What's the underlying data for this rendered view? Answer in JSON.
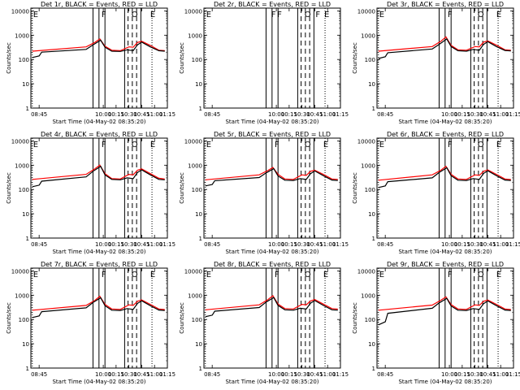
{
  "chart_data": [
    {
      "type": "line",
      "title": "Det 1r, BLACK = Events, RED = LLD",
      "xlabel": "Start Time (04-May-02 08:35:20)",
      "ylabel": "Counts/sec",
      "x_ticks": [
        "08:45",
        "10:00",
        "10:15",
        "10:30",
        "10:45",
        "11:00",
        "11:15"
      ],
      "y_ticks": [
        "1",
        "10",
        "100",
        "1000",
        "10000"
      ],
      "y_scale": "log",
      "ylim": [
        1,
        13000
      ],
      "xlim": [
        "08:35:20",
        "11:15:00"
      ],
      "flag_letters": [
        {
          "t": "08:37",
          "text": "E"
        },
        {
          "t": "09:57",
          "text": "F"
        },
        {
          "t": "10:32",
          "text": "O"
        },
        {
          "t": "10:54",
          "text": "E"
        }
      ],
      "series": [
        {
          "color": "#ff0000",
          "x": [
            "08:37",
            "09:40",
            "09:50",
            "09:56",
            "10:02",
            "10:10",
            "10:20",
            "10:30",
            "10:35",
            "10:40",
            "10:45",
            "10:55",
            "11:05",
            "11:12"
          ],
          "y": [
            220,
            330,
            500,
            700,
            350,
            240,
            230,
            330,
            320,
            500,
            560,
            380,
            240,
            230
          ]
        },
        {
          "color": "#000000",
          "x": [
            "08:37",
            "08:45",
            "08:48",
            "09:40",
            "09:48",
            "09:57",
            "10:02",
            "10:10",
            "10:20",
            "10:28",
            "10:35",
            "10:40",
            "10:45",
            "10:55",
            "11:05",
            "11:12"
          ],
          "y": [
            120,
            140,
            200,
            260,
            400,
            620,
            320,
            220,
            215,
            250,
            230,
            400,
            520,
            330,
            230,
            220
          ]
        }
      ]
    },
    {
      "type": "line",
      "title": "Det 2r, BLACK = Events, RED = LLD",
      "xlabel": "Start Time (04-May-02 08:35:20)",
      "ylabel": "Counts/sec",
      "x_ticks": [
        "08:45",
        "10:00",
        "10:15",
        "10:30",
        "10:45",
        "11:00",
        "11:15"
      ],
      "y_ticks": [
        "1",
        "10",
        "100",
        "1000",
        "10000"
      ],
      "y_scale": "log",
      "ylim": [
        1,
        13000
      ],
      "xlim": [
        "08:35:20",
        "11:15:00"
      ],
      "flag_letters": [
        {
          "t": "08:37",
          "text": "E"
        },
        {
          "t": "09:53",
          "text": "F"
        },
        {
          "t": "10:00",
          "text": "F"
        },
        {
          "t": "10:32",
          "text": "O"
        },
        {
          "t": "10:45",
          "text": "F"
        },
        {
          "t": "10:55",
          "text": "E"
        }
      ],
      "series": []
    },
    {
      "type": "line",
      "title": "Det 3r, BLACK = Events, RED = LLD",
      "xlabel": "Start Time (04-May-02 08:35:20)",
      "ylabel": "Counts/sec",
      "x_ticks": [
        "08:45",
        "10:00",
        "10:15",
        "10:30",
        "10:45",
        "11:00",
        "11:15"
      ],
      "y_ticks": [
        "1",
        "10",
        "100",
        "1000",
        "10000"
      ],
      "y_scale": "log",
      "ylim": [
        1,
        13000
      ],
      "xlim": [
        "08:35:20",
        "11:15:00"
      ],
      "flag_letters": [
        {
          "t": "08:37",
          "text": "E"
        },
        {
          "t": "09:57",
          "text": "F"
        },
        {
          "t": "10:32",
          "text": "O"
        },
        {
          "t": "10:54",
          "text": "E"
        }
      ],
      "series": [
        {
          "color": "#ff0000",
          "x": [
            "08:37",
            "09:40",
            "09:50",
            "09:56",
            "10:02",
            "10:10",
            "10:20",
            "10:30",
            "10:35",
            "10:40",
            "10:45",
            "10:55",
            "11:05",
            "11:12"
          ],
          "y": [
            220,
            340,
            560,
            850,
            380,
            250,
            240,
            340,
            330,
            520,
            580,
            390,
            250,
            240
          ]
        },
        {
          "color": "#000000",
          "x": [
            "08:37",
            "08:45",
            "08:48",
            "09:40",
            "09:48",
            "09:57",
            "10:02",
            "10:10",
            "10:20",
            "10:28",
            "10:35",
            "10:40",
            "10:45",
            "10:55",
            "11:05",
            "11:12"
          ],
          "y": [
            110,
            130,
            190,
            270,
            420,
            700,
            340,
            230,
            220,
            260,
            240,
            420,
            540,
            340,
            235,
            225
          ]
        }
      ]
    },
    {
      "type": "line",
      "title": "Det 4r, BLACK = Events, RED = LLD",
      "xlabel": "Start Time (04-May-02 08:35:20)",
      "ylabel": "Counts/sec",
      "x_ticks": [
        "08:45",
        "10:00",
        "10:15",
        "10:30",
        "10:45",
        "11:00",
        "11:15"
      ],
      "y_ticks": [
        "1",
        "10",
        "100",
        "1000",
        "10000"
      ],
      "y_scale": "log",
      "ylim": [
        1,
        13000
      ],
      "xlim": [
        "08:35:20",
        "11:15:00"
      ],
      "flag_letters": [
        {
          "t": "08:37",
          "text": "E"
        },
        {
          "t": "09:57",
          "text": "F"
        },
        {
          "t": "10:32",
          "text": "O"
        },
        {
          "t": "10:54",
          "text": "E"
        }
      ],
      "series": [
        {
          "color": "#ff0000",
          "x": [
            "08:37",
            "09:40",
            "09:50",
            "09:56",
            "10:02",
            "10:10",
            "10:20",
            "10:30",
            "10:35",
            "10:40",
            "10:45",
            "10:55",
            "11:05",
            "11:12"
          ],
          "y": [
            260,
            420,
            700,
            1000,
            450,
            280,
            270,
            420,
            400,
            620,
            700,
            450,
            290,
            270
          ]
        },
        {
          "color": "#000000",
          "x": [
            "08:37",
            "08:45",
            "08:48",
            "09:40",
            "09:48",
            "09:57",
            "10:02",
            "10:10",
            "10:20",
            "10:28",
            "10:35",
            "10:40",
            "10:45",
            "10:55",
            "11:05",
            "11:12"
          ],
          "y": [
            130,
            150,
            220,
            330,
            560,
            900,
            400,
            260,
            250,
            300,
            280,
            500,
            640,
            400,
            260,
            250
          ]
        }
      ]
    },
    {
      "type": "line",
      "title": "Det 5r, BLACK = Events, RED = LLD",
      "xlabel": "Start Time (04-May-02 08:35:20)",
      "ylabel": "Counts/sec",
      "x_ticks": [
        "08:45",
        "10:00",
        "10:15",
        "10:30",
        "10:45",
        "11:00",
        "11:15"
      ],
      "y_ticks": [
        "1",
        "10",
        "100",
        "1000",
        "10000"
      ],
      "y_scale": "log",
      "ylim": [
        1,
        13000
      ],
      "xlim": [
        "08:35:20",
        "11:15:00"
      ],
      "flag_letters": [
        {
          "t": "08:37",
          "text": "E"
        },
        {
          "t": "09:57",
          "text": "F"
        },
        {
          "t": "10:32",
          "text": "O"
        },
        {
          "t": "10:54",
          "text": "E"
        }
      ],
      "series": [
        {
          "color": "#ff0000",
          "x": [
            "08:37",
            "09:40",
            "09:50",
            "09:56",
            "10:02",
            "10:10",
            "10:20",
            "10:30",
            "10:35",
            "10:40",
            "10:45",
            "10:55",
            "11:05",
            "11:12"
          ],
          "y": [
            250,
            400,
            600,
            800,
            420,
            270,
            260,
            400,
            380,
            560,
            620,
            420,
            270,
            260
          ]
        },
        {
          "color": "#000000",
          "x": [
            "08:37",
            "08:45",
            "08:48",
            "09:40",
            "09:48",
            "09:57",
            "10:02",
            "10:10",
            "10:20",
            "10:28",
            "10:35",
            "10:40",
            "10:45",
            "10:55",
            "11:05",
            "11:12"
          ],
          "y": [
            140,
            160,
            230,
            310,
            480,
            720,
            360,
            240,
            235,
            280,
            260,
            450,
            580,
            370,
            245,
            235
          ]
        }
      ]
    },
    {
      "type": "line",
      "title": "Det 6r, BLACK = Events, RED = LLD",
      "xlabel": "Start Time (04-May-02 08:35:20)",
      "ylabel": "Counts/sec",
      "x_ticks": [
        "08:45",
        "10:00",
        "10:15",
        "10:30",
        "10:45",
        "11:00",
        "11:15"
      ],
      "y_ticks": [
        "1",
        "10",
        "100",
        "1000",
        "10000"
      ],
      "y_scale": "log",
      "ylim": [
        1,
        13000
      ],
      "xlim": [
        "08:35:20",
        "11:15:00"
      ],
      "flag_letters": [
        {
          "t": "08:37",
          "text": "E"
        },
        {
          "t": "09:57",
          "text": "F"
        },
        {
          "t": "10:32",
          "text": "O"
        },
        {
          "t": "10:54",
          "text": "E"
        }
      ],
      "series": [
        {
          "color": "#ff0000",
          "x": [
            "08:37",
            "09:40",
            "09:50",
            "09:56",
            "10:02",
            "10:10",
            "10:20",
            "10:30",
            "10:35",
            "10:40",
            "10:45",
            "10:55",
            "11:05",
            "11:12"
          ],
          "y": [
            240,
            400,
            620,
            900,
            420,
            270,
            260,
            400,
            380,
            560,
            640,
            420,
            270,
            255
          ]
        },
        {
          "color": "#000000",
          "x": [
            "08:37",
            "08:45",
            "08:48",
            "09:40",
            "09:48",
            "09:57",
            "10:02",
            "10:10",
            "10:20",
            "10:28",
            "10:35",
            "10:40",
            "10:45",
            "10:55",
            "11:05",
            "11:12"
          ],
          "y": [
            120,
            140,
            210,
            300,
            500,
            780,
            370,
            240,
            235,
            280,
            260,
            460,
            590,
            370,
            245,
            235
          ]
        }
      ]
    },
    {
      "type": "line",
      "title": "Det 7r, BLACK = Events, RED = LLD",
      "xlabel": "Start Time (04-May-02 08:35:20)",
      "ylabel": "Counts/sec",
      "x_ticks": [
        "08:45",
        "10:00",
        "10:15",
        "10:30",
        "10:45",
        "11:00",
        "11:15"
      ],
      "y_ticks": [
        "1",
        "10",
        "100",
        "1000",
        "10000"
      ],
      "y_scale": "log",
      "ylim": [
        1,
        13000
      ],
      "xlim": [
        "08:35:20",
        "11:15:00"
      ],
      "flag_letters": [
        {
          "t": "08:37",
          "text": "E"
        },
        {
          "t": "09:57",
          "text": "F"
        },
        {
          "t": "10:32",
          "text": "O"
        },
        {
          "t": "10:54",
          "text": "E"
        }
      ],
      "series": [
        {
          "color": "#ff0000",
          "x": [
            "08:37",
            "09:40",
            "09:50",
            "09:56",
            "10:02",
            "10:10",
            "10:20",
            "10:30",
            "10:35",
            "10:40",
            "10:45",
            "10:55",
            "11:05",
            "11:12"
          ],
          "y": [
            240,
            380,
            600,
            900,
            420,
            270,
            260,
            400,
            380,
            560,
            640,
            420,
            270,
            255
          ]
        },
        {
          "color": "#000000",
          "x": [
            "08:37",
            "08:45",
            "08:48",
            "09:40",
            "09:48",
            "09:57",
            "10:02",
            "10:10",
            "10:20",
            "10:28",
            "10:35",
            "10:40",
            "10:45",
            "10:55",
            "11:05",
            "11:12"
          ],
          "y": [
            120,
            140,
            210,
            300,
            500,
            780,
            370,
            240,
            235,
            280,
            260,
            460,
            590,
            370,
            245,
            235
          ]
        }
      ]
    },
    {
      "type": "line",
      "title": "Det 8r, BLACK = Events, RED = LLD",
      "xlabel": "Start Time (04-May-02 08:35:20)",
      "ylabel": "Counts/sec",
      "x_ticks": [
        "08:45",
        "10:00",
        "10:15",
        "10:30",
        "10:45",
        "11:00",
        "11:15"
      ],
      "y_ticks": [
        "1",
        "10",
        "100",
        "1000",
        "10000"
      ],
      "y_scale": "log",
      "ylim": [
        1,
        13000
      ],
      "xlim": [
        "08:35:20",
        "11:15:00"
      ],
      "flag_letters": [
        {
          "t": "08:37",
          "text": "E"
        },
        {
          "t": "09:57",
          "text": "F"
        },
        {
          "t": "10:32",
          "text": "O"
        },
        {
          "t": "10:54",
          "text": "E"
        }
      ],
      "series": [
        {
          "color": "#ff0000",
          "x": [
            "08:37",
            "09:40",
            "09:50",
            "09:56",
            "10:02",
            "10:10",
            "10:20",
            "10:30",
            "10:35",
            "10:40",
            "10:45",
            "10:55",
            "11:05",
            "11:12"
          ],
          "y": [
            250,
            400,
            650,
            950,
            430,
            280,
            270,
            420,
            400,
            580,
            660,
            430,
            280,
            265
          ]
        },
        {
          "color": "#000000",
          "x": [
            "08:37",
            "08:45",
            "08:48",
            "09:40",
            "09:48",
            "09:57",
            "10:02",
            "10:10",
            "10:20",
            "10:28",
            "10:35",
            "10:40",
            "10:45",
            "10:55",
            "11:05",
            "11:12"
          ],
          "y": [
            130,
            150,
            220,
            310,
            520,
            800,
            380,
            250,
            240,
            290,
            270,
            470,
            600,
            380,
            250,
            240
          ]
        }
      ]
    },
    {
      "type": "line",
      "title": "Det 9r, BLACK = Events, RED = LLD",
      "xlabel": "Start Time (04-May-02 08:35:20)",
      "ylabel": "Counts/sec",
      "x_ticks": [
        "08:45",
        "10:00",
        "10:15",
        "10:30",
        "10:45",
        "11:00",
        "11:15"
      ],
      "y_ticks": [
        "1",
        "10",
        "100",
        "1000",
        "10000"
      ],
      "y_scale": "log",
      "ylim": [
        1,
        13000
      ],
      "xlim": [
        "08:35:20",
        "11:15:00"
      ],
      "flag_letters": [
        {
          "t": "08:37",
          "text": "E"
        },
        {
          "t": "09:57",
          "text": "F"
        },
        {
          "t": "10:32",
          "text": "O"
        },
        {
          "t": "10:54",
          "text": "E"
        }
      ],
      "series": [
        {
          "color": "#ff0000",
          "x": [
            "08:37",
            "09:40",
            "09:50",
            "09:56",
            "10:02",
            "10:10",
            "10:20",
            "10:30",
            "10:35",
            "10:40",
            "10:45",
            "10:55",
            "11:05",
            "11:12"
          ],
          "y": [
            240,
            390,
            620,
            850,
            410,
            270,
            260,
            400,
            380,
            560,
            630,
            420,
            270,
            255
          ]
        },
        {
          "color": "#000000",
          "x": [
            "08:37",
            "08:45",
            "08:48",
            "09:40",
            "09:48",
            "09:57",
            "10:02",
            "10:10",
            "10:20",
            "10:28",
            "10:35",
            "10:40",
            "10:45",
            "10:55",
            "11:05",
            "11:12"
          ],
          "y": [
            60,
            80,
            180,
            290,
            480,
            740,
            360,
            240,
            235,
            280,
            260,
            450,
            580,
            370,
            245,
            235
          ]
        }
      ]
    }
  ],
  "time_markers": [
    {
      "t": "08:37",
      "style": "dotted"
    },
    {
      "t": "09:48",
      "style": "solid"
    },
    {
      "t": "09:55",
      "style": "solid"
    },
    {
      "t": "10:02",
      "style": "solid"
    },
    {
      "t": "10:25",
      "style": "solid"
    },
    {
      "t": "10:29",
      "style": "dashed"
    },
    {
      "t": "10:34",
      "style": "dashed"
    },
    {
      "t": "10:39",
      "style": "dashed"
    },
    {
      "t": "10:44",
      "style": "solid"
    },
    {
      "t": "10:57",
      "style": "dotted"
    }
  ]
}
